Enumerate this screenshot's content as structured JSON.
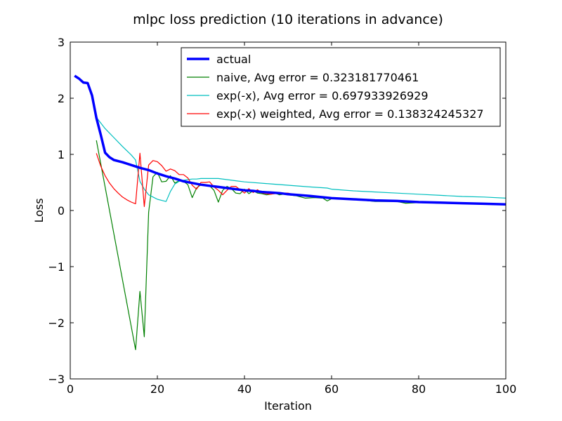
{
  "chart_data": {
    "type": "line",
    "title": "mlpc loss prediction (10 iterations in advance)",
    "xlabel": "Iteration",
    "ylabel": "Loss",
    "xlim": [
      0,
      100
    ],
    "ylim": [
      -3,
      3
    ],
    "xticks": [
      0,
      20,
      40,
      60,
      80,
      100
    ],
    "yticks": [
      -3,
      -2,
      -1,
      0,
      1,
      2,
      3
    ],
    "grid": false,
    "legend_position": "top-right",
    "series": [
      {
        "name": "actual",
        "color": "#0000ff",
        "x": [
          1,
          2,
          3,
          4,
          5,
          6,
          7,
          8,
          9,
          10,
          12,
          14,
          16,
          18,
          20,
          22,
          24,
          26,
          28,
          30,
          32,
          34,
          36,
          38,
          40,
          42,
          44,
          46,
          48,
          50,
          55,
          60,
          65,
          70,
          75,
          80,
          85,
          90,
          95,
          100
        ],
        "y": [
          2.4,
          2.35,
          2.28,
          2.27,
          2.05,
          1.65,
          1.35,
          1.03,
          0.95,
          0.9,
          0.86,
          0.81,
          0.76,
          0.72,
          0.66,
          0.61,
          0.57,
          0.52,
          0.49,
          0.46,
          0.44,
          0.42,
          0.4,
          0.38,
          0.36,
          0.35,
          0.33,
          0.32,
          0.31,
          0.29,
          0.26,
          0.22,
          0.2,
          0.18,
          0.17,
          0.15,
          0.14,
          0.13,
          0.12,
          0.11
        ]
      },
      {
        "name": "naive, Avg error = 0.323181770461",
        "color": "#008000",
        "x": [
          6,
          15,
          16,
          17,
          18,
          19,
          20,
          21,
          22,
          23,
          24,
          25,
          26,
          27,
          28,
          29,
          30,
          31,
          32,
          33,
          34,
          35,
          36,
          37,
          38,
          39,
          40,
          41,
          42,
          43,
          44,
          45,
          46,
          47,
          48,
          49,
          50,
          52,
          54,
          56,
          58,
          59,
          60,
          65,
          70,
          75,
          77,
          80,
          85,
          90,
          95,
          100
        ],
        "y": [
          1.25,
          -2.48,
          -1.44,
          -2.25,
          -0.03,
          0.6,
          0.68,
          0.51,
          0.52,
          0.62,
          0.49,
          0.53,
          0.52,
          0.46,
          0.23,
          0.4,
          0.46,
          0.45,
          0.44,
          0.36,
          0.15,
          0.36,
          0.43,
          0.39,
          0.31,
          0.3,
          0.38,
          0.3,
          0.35,
          0.31,
          0.3,
          0.28,
          0.29,
          0.31,
          0.28,
          0.29,
          0.28,
          0.26,
          0.22,
          0.23,
          0.22,
          0.17,
          0.21,
          0.2,
          0.16,
          0.16,
          0.13,
          0.14,
          0.13,
          0.12,
          0.11,
          0.1
        ]
      },
      {
        "name": "exp(-x), Avg error = 0.697933926929",
        "color": "#00bfbf",
        "x": [
          6,
          8,
          10,
          12,
          14,
          15,
          16,
          17,
          18,
          19,
          20,
          21,
          22,
          23,
          24,
          25,
          26,
          27,
          28,
          29,
          30,
          32,
          34,
          36,
          38,
          40,
          45,
          50,
          55,
          59,
          60,
          65,
          70,
          75,
          80,
          85,
          90,
          95,
          100
        ],
        "y": [
          1.66,
          1.46,
          1.3,
          1.14,
          0.99,
          0.9,
          0.52,
          0.38,
          0.28,
          0.24,
          0.2,
          0.18,
          0.16,
          0.34,
          0.47,
          0.52,
          0.54,
          0.55,
          0.56,
          0.56,
          0.57,
          0.57,
          0.57,
          0.55,
          0.53,
          0.51,
          0.48,
          0.45,
          0.42,
          0.4,
          0.38,
          0.35,
          0.33,
          0.31,
          0.29,
          0.27,
          0.25,
          0.24,
          0.22
        ]
      },
      {
        "name": "exp(-x) weighted, Avg error = 0.138324245327",
        "color": "#ff0000",
        "x": [
          6,
          7,
          8,
          9,
          10,
          11,
          12,
          13,
          14,
          15,
          16,
          17,
          18,
          19,
          20,
          21,
          22,
          23,
          24,
          25,
          26,
          27,
          28,
          29,
          30,
          31,
          32,
          33,
          34,
          35,
          36,
          37,
          38,
          39,
          40,
          41,
          42,
          43,
          44,
          45,
          46,
          47,
          48,
          49,
          50,
          52,
          55,
          58,
          60,
          65,
          70,
          75,
          80,
          85,
          90,
          95,
          100
        ],
        "y": [
          1.02,
          0.79,
          0.62,
          0.49,
          0.39,
          0.31,
          0.24,
          0.19,
          0.15,
          0.12,
          1.02,
          0.07,
          0.81,
          0.89,
          0.87,
          0.8,
          0.7,
          0.74,
          0.71,
          0.64,
          0.64,
          0.58,
          0.45,
          0.38,
          0.5,
          0.5,
          0.51,
          0.42,
          0.36,
          0.28,
          0.36,
          0.43,
          0.43,
          0.37,
          0.31,
          0.39,
          0.32,
          0.37,
          0.31,
          0.3,
          0.29,
          0.3,
          0.32,
          0.31,
          0.31,
          0.27,
          0.25,
          0.24,
          0.22,
          0.2,
          0.18,
          0.17,
          0.15,
          0.14,
          0.13,
          0.12,
          0.1
        ]
      }
    ]
  }
}
